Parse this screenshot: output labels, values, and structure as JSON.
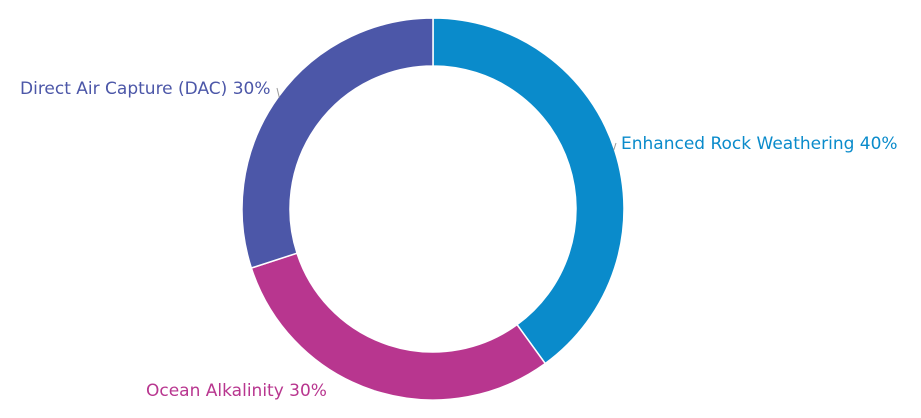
{
  "chart_data": {
    "type": "pie",
    "variant": "donut",
    "title": "",
    "legend": "none",
    "slices": [
      {
        "label": "Enhanced Rock Weathering",
        "value": 40,
        "percent_text": "40%",
        "color": "#0A8BCB"
      },
      {
        "label": "Ocean Alkalinity",
        "value": 30,
        "percent_text": "30%",
        "color": "#B8368F"
      },
      {
        "label": "Direct Air Capture (DAC)",
        "value": 30,
        "percent_text": "30%",
        "color": "#4C57A8"
      }
    ]
  }
}
